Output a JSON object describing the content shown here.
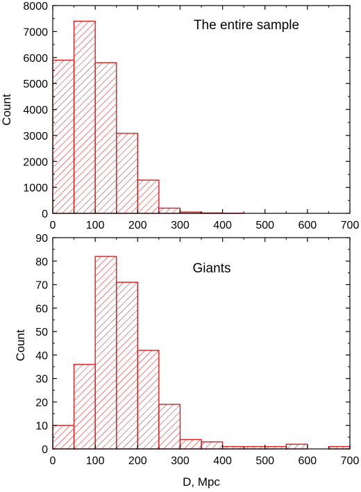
{
  "chart_data": [
    {
      "type": "bar",
      "title": "The entire sample",
      "xlabel": "",
      "ylabel": "Count",
      "xlim": [
        0,
        700
      ],
      "ylim": [
        0,
        8000
      ],
      "x_ticks": [
        0,
        100,
        200,
        300,
        400,
        500,
        600,
        700
      ],
      "y_ticks": [
        0,
        1000,
        2000,
        3000,
        4000,
        5000,
        6000,
        7000,
        8000
      ],
      "bin_width": 50,
      "bin_edges": [
        0,
        50,
        100,
        150,
        200,
        250,
        300,
        350,
        400,
        450,
        500,
        550,
        600,
        650
      ],
      "values": [
        5900,
        7400,
        5800,
        3080,
        1280,
        200,
        50,
        15,
        5,
        0,
        0,
        0,
        0,
        0
      ],
      "colors": {
        "bar": "#d62020"
      },
      "grid": false
    },
    {
      "type": "bar",
      "title": "Giants",
      "xlabel": "D, Mpc",
      "ylabel": "Count",
      "xlim": [
        0,
        700
      ],
      "ylim": [
        0,
        90
      ],
      "x_ticks": [
        0,
        100,
        200,
        300,
        400,
        500,
        600,
        700
      ],
      "y_ticks": [
        0,
        10,
        20,
        30,
        40,
        50,
        60,
        70,
        80,
        90
      ],
      "bin_width": 50,
      "bin_edges": [
        0,
        50,
        100,
        150,
        200,
        250,
        300,
        350,
        400,
        450,
        500,
        550,
        600,
        650
      ],
      "values": [
        10,
        36,
        82,
        71,
        42,
        19,
        4,
        3,
        1,
        1,
        1,
        2,
        0,
        1
      ],
      "colors": {
        "bar": "#d62020"
      },
      "grid": false
    }
  ]
}
